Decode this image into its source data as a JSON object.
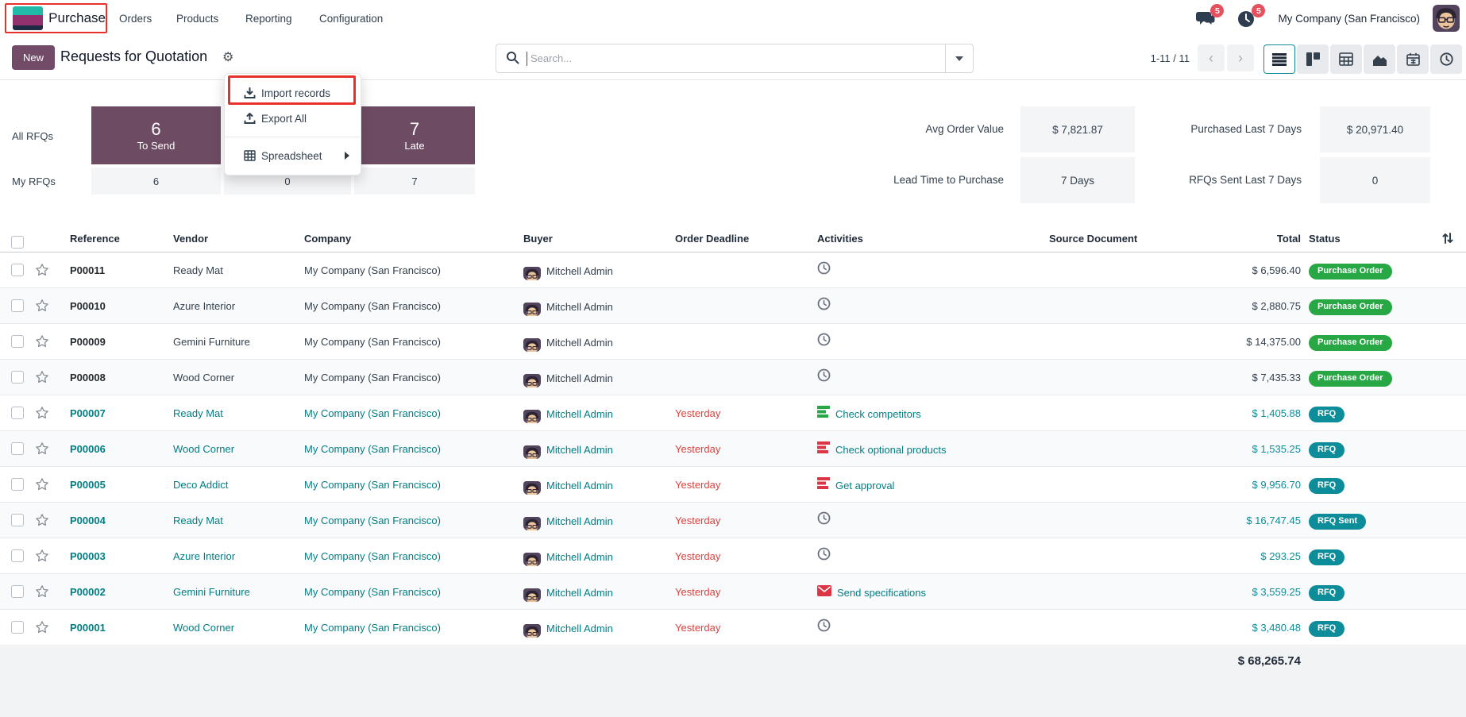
{
  "nav": {
    "app_name": "Purchase",
    "menus": [
      "Orders",
      "Products",
      "Reporting",
      "Configuration"
    ],
    "chat_badge": "5",
    "activity_badge": "5",
    "company": "My Company (San Francisco)"
  },
  "control": {
    "new_label": "New",
    "title": "Requests for Quotation",
    "search_placeholder": "Search...",
    "pager": "1-11 / 11"
  },
  "gear_menu": {
    "import_label": "Import records",
    "export_label": "Export All",
    "spreadsheet_label": "Spreadsheet"
  },
  "dashboard": {
    "row_label_all": "All RFQs",
    "row_label_my": "My RFQs",
    "cards": [
      {
        "value": "6",
        "label": "To Send",
        "my_value": "6"
      },
      {
        "value": "",
        "label": "",
        "my_value": "0"
      },
      {
        "value": "7",
        "label": "Late",
        "my_value": "7"
      }
    ],
    "stats": [
      {
        "label": "Avg Order Value",
        "value": "$ 7,821.87"
      },
      {
        "label": "Purchased Last 7 Days",
        "value": "$ 20,971.40"
      },
      {
        "label": "Lead Time to Purchase",
        "value": "7 Days"
      },
      {
        "label": "RFQs Sent Last 7 Days",
        "value": "0"
      }
    ]
  },
  "table": {
    "headers": [
      "Reference",
      "Vendor",
      "Company",
      "Buyer",
      "Order Deadline",
      "Activities",
      "Source Document",
      "Total",
      "Status"
    ],
    "rows": [
      {
        "ref": "P00011",
        "vendor": "Ready Mat",
        "company": "My Company (San Francisco)",
        "buyer": "Mitchell Admin",
        "deadline": "",
        "activity": "clock",
        "activity_label": "",
        "total": "$ 6,596.40",
        "status": "Purchase Order",
        "status_type": "po",
        "style": "done"
      },
      {
        "ref": "P00010",
        "vendor": "Azure Interior",
        "company": "My Company (San Francisco)",
        "buyer": "Mitchell Admin",
        "deadline": "",
        "activity": "clock",
        "activity_label": "",
        "total": "$ 2,880.75",
        "status": "Purchase Order",
        "status_type": "po",
        "style": "done"
      },
      {
        "ref": "P00009",
        "vendor": "Gemini Furniture",
        "company": "My Company (San Francisco)",
        "buyer": "Mitchell Admin",
        "deadline": "",
        "activity": "clock",
        "activity_label": "",
        "total": "$ 14,375.00",
        "status": "Purchase Order",
        "status_type": "po",
        "style": "done"
      },
      {
        "ref": "P00008",
        "vendor": "Wood Corner",
        "company": "My Company (San Francisco)",
        "buyer": "Mitchell Admin",
        "deadline": "",
        "activity": "clock",
        "activity_label": "",
        "total": "$ 7,435.33",
        "status": "Purchase Order",
        "status_type": "po",
        "style": "done"
      },
      {
        "ref": "P00007",
        "vendor": "Ready Mat",
        "company": "My Company (San Francisco)",
        "buyer": "Mitchell Admin",
        "deadline": "Yesterday",
        "activity": "list-green",
        "activity_label": "Check competitors",
        "total": "$ 1,405.88",
        "status": "RFQ",
        "status_type": "rfq",
        "style": "rfq"
      },
      {
        "ref": "P00006",
        "vendor": "Wood Corner",
        "company": "My Company (San Francisco)",
        "buyer": "Mitchell Admin",
        "deadline": "Yesterday",
        "activity": "list-red",
        "activity_label": "Check optional products",
        "total": "$ 1,535.25",
        "status": "RFQ",
        "status_type": "rfq",
        "style": "rfq"
      },
      {
        "ref": "P00005",
        "vendor": "Deco Addict",
        "company": "My Company (San Francisco)",
        "buyer": "Mitchell Admin",
        "deadline": "Yesterday",
        "activity": "list-red",
        "activity_label": "Get approval",
        "total": "$ 9,956.70",
        "status": "RFQ",
        "status_type": "rfq",
        "style": "rfq"
      },
      {
        "ref": "P00004",
        "vendor": "Ready Mat",
        "company": "My Company (San Francisco)",
        "buyer": "Mitchell Admin",
        "deadline": "Yesterday",
        "activity": "clock",
        "activity_label": "",
        "total": "$ 16,747.45",
        "status": "RFQ Sent",
        "status_type": "rfq",
        "style": "rfq"
      },
      {
        "ref": "P00003",
        "vendor": "Azure Interior",
        "company": "My Company (San Francisco)",
        "buyer": "Mitchell Admin",
        "deadline": "Yesterday",
        "activity": "clock",
        "activity_label": "",
        "total": "$ 293.25",
        "status": "RFQ",
        "status_type": "rfq",
        "style": "rfq"
      },
      {
        "ref": "P00002",
        "vendor": "Gemini Furniture",
        "company": "My Company (San Francisco)",
        "buyer": "Mitchell Admin",
        "deadline": "Yesterday",
        "activity": "envelope",
        "activity_label": "Send specifications",
        "total": "$ 3,559.25",
        "status": "RFQ",
        "status_type": "rfq",
        "style": "rfq"
      },
      {
        "ref": "P00001",
        "vendor": "Wood Corner",
        "company": "My Company (San Francisco)",
        "buyer": "Mitchell Admin",
        "deadline": "Yesterday",
        "activity": "clock",
        "activity_label": "",
        "total": "$ 3,480.48",
        "status": "RFQ",
        "status_type": "rfq",
        "style": "rfq"
      }
    ],
    "footer_total": "$ 68,265.74"
  },
  "colors": {
    "brand_purple": "#714B67",
    "card_purple": "#6d4c63",
    "link_teal": "#017e84",
    "badge_teal": "#0c8d99",
    "badge_green": "#28a745",
    "overdue_red": "#d9433f",
    "annotation_red": "#e8312a"
  }
}
